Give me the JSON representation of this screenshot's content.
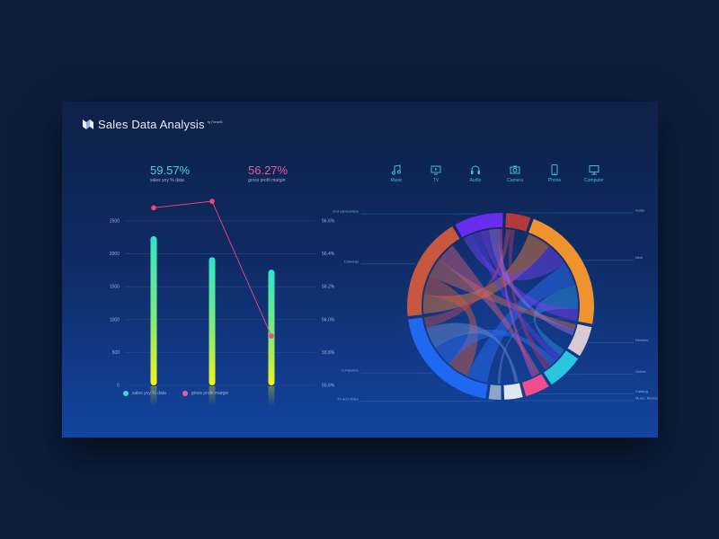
{
  "header": {
    "title": "Sales Data Analysis",
    "byline": "by Fanselli"
  },
  "kpis": [
    {
      "value": "59.57%",
      "label": "sales yoy % data",
      "color": "#3fd7d5"
    },
    {
      "value": "56.27%",
      "label": "gross profit margin",
      "color": "#f05aa2"
    }
  ],
  "categories": [
    {
      "label": "Music",
      "icon": "music-note-icon"
    },
    {
      "label": "TV",
      "icon": "tv-icon"
    },
    {
      "label": "Audio",
      "icon": "headphones-icon"
    },
    {
      "label": "Camera",
      "icon": "camera-icon"
    },
    {
      "label": "Phone",
      "icon": "phone-icon"
    },
    {
      "label": "Computer",
      "icon": "computer-icon"
    }
  ],
  "legend": [
    {
      "label": "sales yoy % data",
      "color": "#3fd7d5"
    },
    {
      "label": "gross profit margin",
      "color": "#f05aa2"
    }
  ],
  "chart_data": [
    {
      "type": "bar",
      "categories": [
        "",
        "",
        ""
      ],
      "series": [
        {
          "name": "sales yoy % data",
          "type": "bar",
          "values": [
            2270,
            1950,
            1760
          ]
        },
        {
          "name": "gross profit margin",
          "type": "line",
          "axis": "right",
          "values": [
            56.68,
            56.72,
            55.9
          ]
        }
      ],
      "left_ticks": [
        "0",
        "500",
        "1000",
        "1500",
        "2000",
        "2500"
      ],
      "right_ticks": [
        "55.6%",
        "55.8%",
        "56.0%",
        "56.2%",
        "56.4%",
        "56.6%"
      ],
      "ylim": [
        0,
        2500
      ],
      "y2lim": [
        55.6,
        56.6
      ],
      "grid": true,
      "legend_position": "bottom-left",
      "colors": {
        "bar_top": "#2ee6c8",
        "bar_bottom": "#f2f21a",
        "line": "#f0487e"
      }
    },
    {
      "type": "chord",
      "segments": [
        {
          "label": "Audio",
          "value": 4,
          "color": "#b23a3a"
        },
        {
          "label": "New",
          "value": 21,
          "color": "#f0922e"
        },
        {
          "label": "Reseller",
          "value": 5,
          "color": "#d9c9d4"
        },
        {
          "label": "Online",
          "value": 6,
          "color": "#29c6e0"
        },
        {
          "label": "Catalog",
          "value": 4,
          "color": "#f04d8c"
        },
        {
          "label": "Music, Movies and Audio Books",
          "value": 3,
          "color": "#dfe6f0"
        },
        {
          "label": "TV and Video",
          "value": 2,
          "color": "#8da4c8"
        },
        {
          "label": "Computers",
          "value": 19,
          "color": "#1f69f0"
        },
        {
          "label": "Cameras",
          "value": 17,
          "color": "#c8573f"
        },
        {
          "label": "Cameras and camcorders",
          "value": 8,
          "color": "#6a2cf0"
        }
      ]
    }
  ]
}
